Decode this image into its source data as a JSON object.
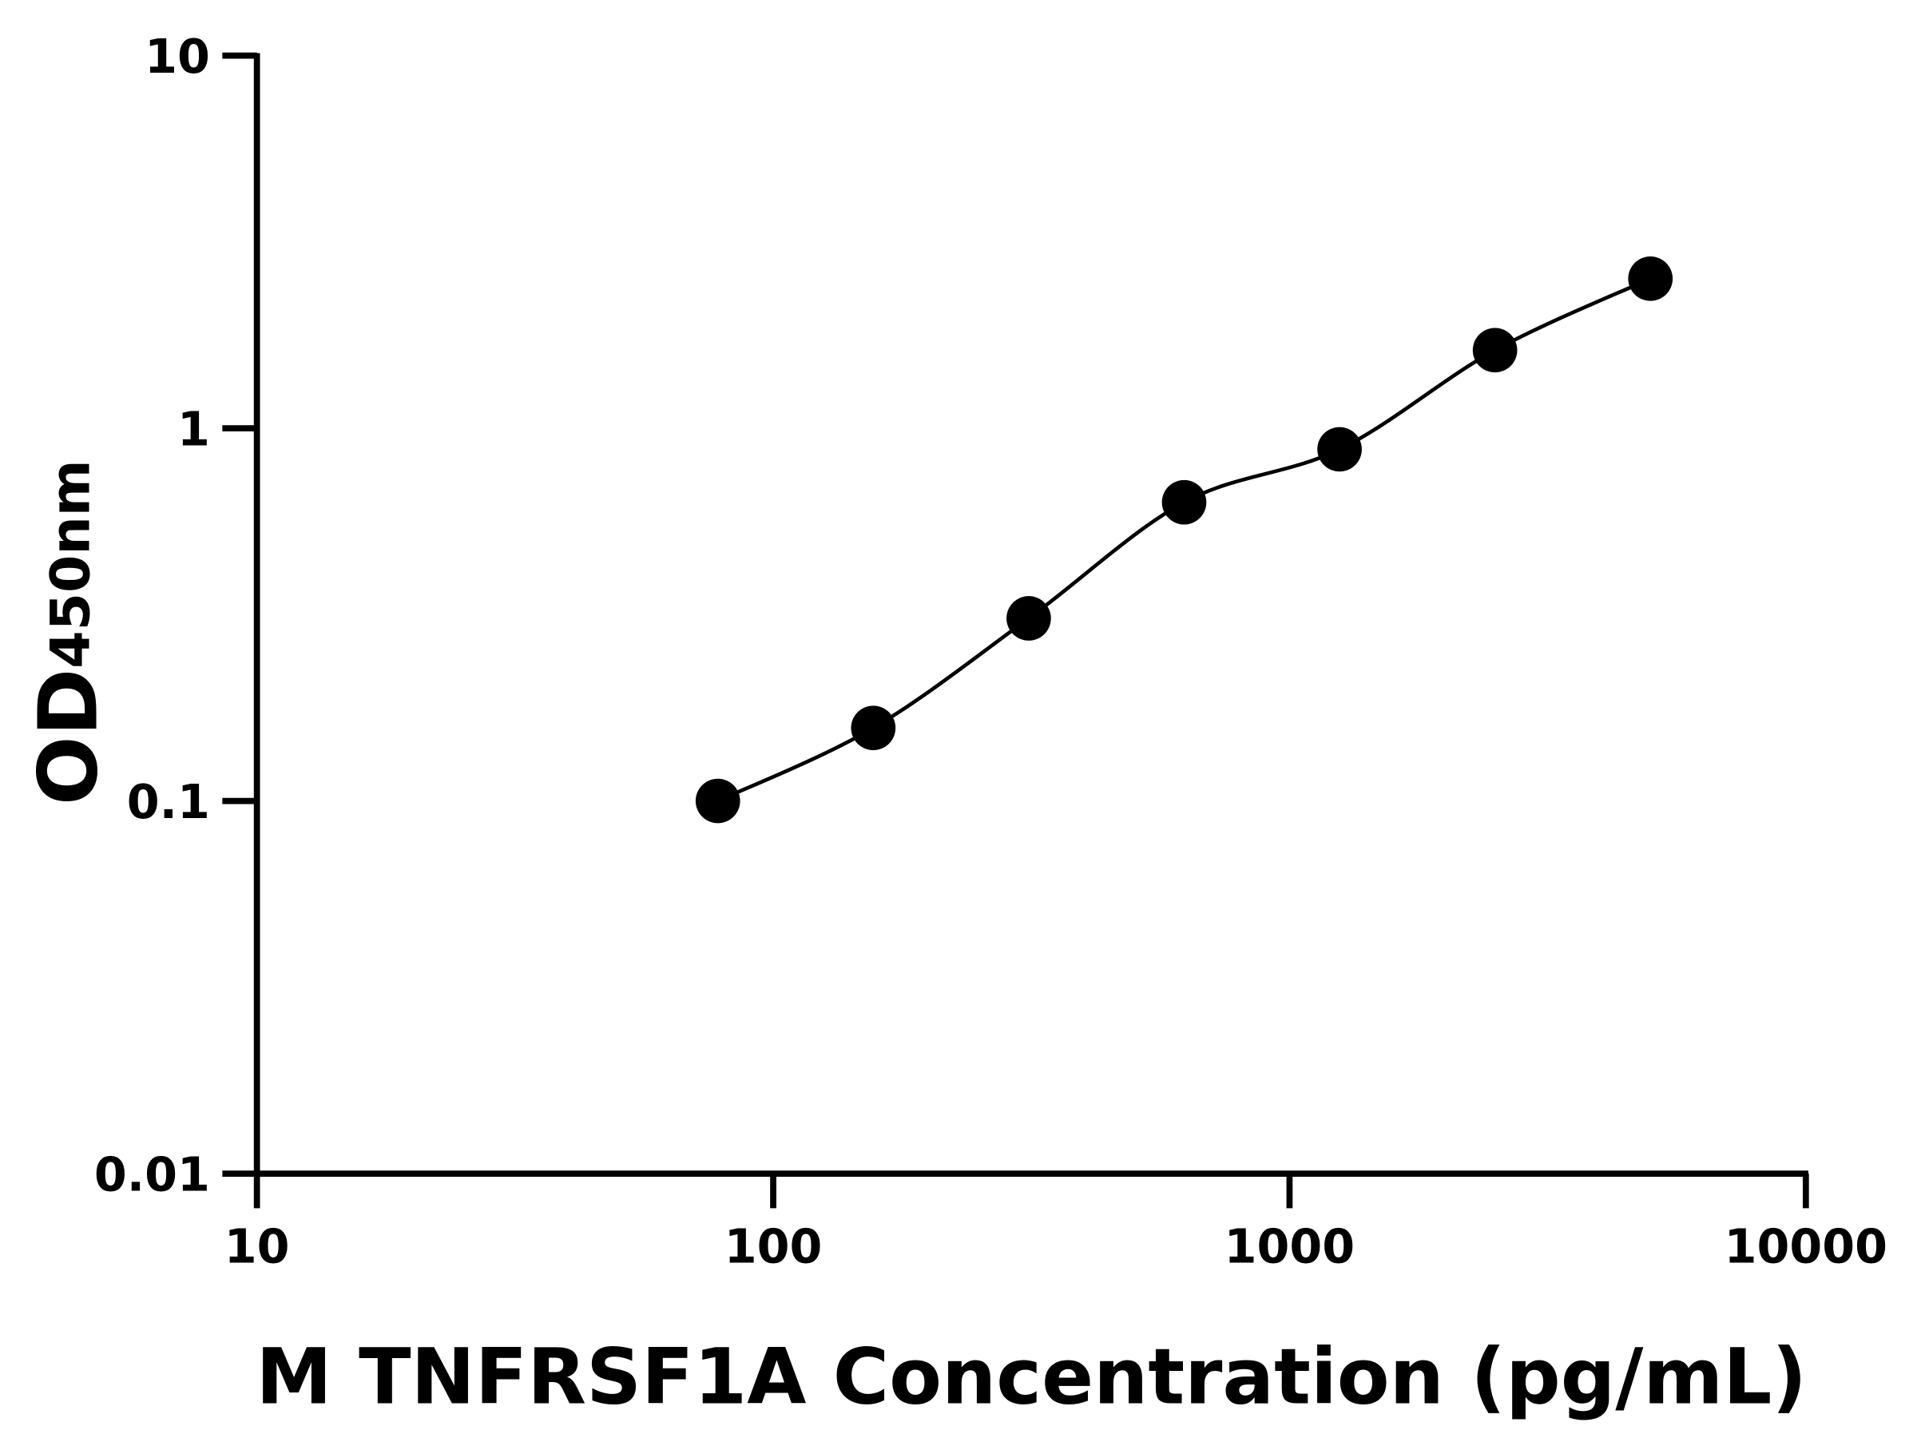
{
  "chart_data": {
    "type": "scatter",
    "title": "",
    "xlabel": "M TNFRSF1A Concentration (pg/mL)",
    "ylabel_main": "OD",
    "ylabel_sub": "450nm",
    "x_scale": "log",
    "y_scale": "log",
    "xlim": [
      10,
      10000
    ],
    "ylim": [
      0.01,
      10
    ],
    "x_ticks": [
      10,
      100,
      1000,
      10000
    ],
    "x_tick_labels": [
      "10",
      "100",
      "1000",
      "10000"
    ],
    "y_ticks": [
      0.01,
      0.1,
      1,
      10
    ],
    "y_tick_labels": [
      "0.01",
      "0.1",
      "1",
      "10"
    ],
    "grid": false,
    "legend": "none",
    "fit_line": true,
    "color": "#000000",
    "points": [
      {
        "x": 78.125,
        "y": 0.1
      },
      {
        "x": 156.25,
        "y": 0.157
      },
      {
        "x": 312.5,
        "y": 0.309
      },
      {
        "x": 625,
        "y": 0.633
      },
      {
        "x": 1250,
        "y": 0.878
      },
      {
        "x": 2500,
        "y": 1.62
      },
      {
        "x": 5000,
        "y": 2.52
      }
    ]
  }
}
